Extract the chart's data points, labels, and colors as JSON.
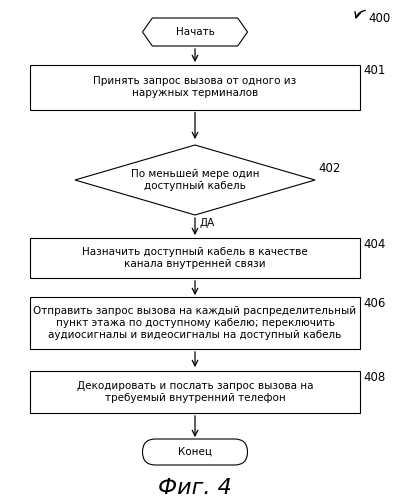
{
  "title": "Фиг. 4",
  "label_400": "400",
  "label_401": "401",
  "label_402": "402",
  "label_404": "404",
  "label_406": "406",
  "label_408": "408",
  "start_text": "Начать",
  "end_text": "Конец",
  "box401_text": "Принять запрос вызова от одного из\nнаружных терминалов",
  "diamond402_text": "По меньшей мере один\nдоступный кабель",
  "yes_label": "ДА",
  "box404_text": "Назначить доступный кабель в качестве\nканала внутренней связи",
  "box406_text": "Отправить запрос вызова на каждый распределительный\nпункт этажа по доступному кабелю; переключить\nаудиосигналы и видеосигналы на доступный кабель",
  "box408_text": "Декодировать и послать запрос вызова на\nтребуемый внутренний телефон",
  "bg_color": "#ffffff",
  "box_fill": "#ffffff",
  "box_edge": "#000000",
  "text_color": "#000000",
  "arrow_color": "#000000",
  "font_size": 7.5,
  "label_font_size": 8.5,
  "title_font_size": 16
}
